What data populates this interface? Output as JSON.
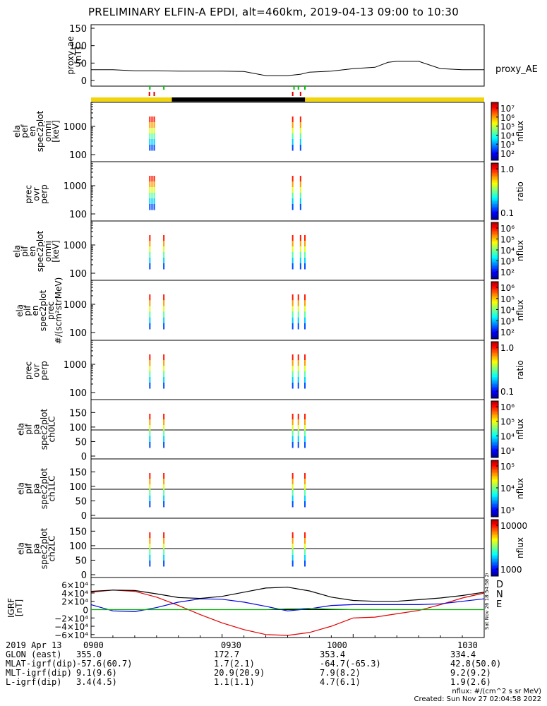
{
  "title": "PRELIMINARY ELFIN-A EPDI, alt=460km, 2019-04-13 09:00 to 10:30",
  "credits": {
    "units": "nflux: #/(cm^2 s sr MeV)",
    "created": "Created: Sun Nov 27 02:04:58 2022"
  },
  "stamp": "Sat Nov 26 18:54:58 2022",
  "footer": {
    "row_labels": [
      "2019 Apr 13",
      "GLON (east)",
      "MLAT-igrf(dip)",
      "MLT-igrf(dip)",
      "L-igrf(dip)"
    ],
    "times": [
      "0900",
      "0930",
      "1000",
      "1030"
    ],
    "rows": [
      [
        "355.0",
        "172.7",
        "353.4",
        "334.4"
      ],
      [
        "-57.6(60.7)",
        "1.7(2.1)",
        "-64.7(-65.3)",
        "42.8(50.0)"
      ],
      [
        "9.1(9.6)",
        "20.9(20.9)",
        "7.9(8.2)",
        "9.2(9.2)"
      ],
      [
        "3.4(4.5)",
        "1.1(1.1)",
        "4.7(6.1)",
        "1.9(2.6)"
      ]
    ]
  },
  "chart_data": [
    {
      "type": "line",
      "panel": "proxy_ae",
      "ylabel": "proxy_ae\n[nT]",
      "legend": "proxy_AE",
      "ylim": [
        0,
        150
      ],
      "yticks": [
        "150",
        "100",
        "50",
        "0"
      ],
      "x_minutes": [
        0,
        5,
        10,
        15,
        20,
        25,
        30,
        35,
        40,
        45,
        48,
        50,
        55,
        60,
        65,
        68,
        70,
        75,
        80,
        85,
        90
      ],
      "values": [
        31,
        31,
        28,
        28,
        27,
        27,
        27,
        26,
        14,
        14,
        18,
        24,
        27,
        34,
        38,
        52,
        55,
        55,
        34,
        31,
        31
      ]
    },
    {
      "type": "table",
      "panel": "orbit_bar",
      "segments": [
        {
          "from_min": 0,
          "to_min": 18.5,
          "color": "#f2d40a"
        },
        {
          "from_min": 18.5,
          "to_min": 49.0,
          "color": "#000000"
        },
        {
          "from_min": 49.0,
          "to_min": 90,
          "color": "#f2d40a"
        }
      ],
      "green_ticks_min": [
        13.3,
        16.5,
        46.3,
        47.3,
        48.8
      ],
      "red_ticks_min": [
        13.2,
        14.3,
        46.0,
        47.8
      ]
    },
    {
      "type": "heatmap",
      "panel": "ela_pef_en_spec2plot_omni",
      "ylabel": "ela\npef\nen\nspec2plot\nomni\n[keV]",
      "yscale": "log",
      "yticks": [
        "1000",
        "100"
      ],
      "colorbar": {
        "label": "nflux",
        "ticks": [
          "10⁷",
          "10⁶",
          "10⁵",
          "10⁴",
          "10³",
          "10²"
        ]
      },
      "streaks_min": [
        13.3,
        13.8,
        14.3,
        46.0,
        47.8
      ]
    },
    {
      "type": "heatmap",
      "panel": "prec_ovr_perp_1",
      "ylabel": "prec\novr\nperp",
      "yscale": "log",
      "yticks": [
        "1000",
        "100"
      ],
      "colorbar": {
        "label": "ratio",
        "ticks": [
          "1.0",
          "0.1"
        ]
      },
      "streaks_min": [
        13.3,
        13.8,
        14.3,
        46.0,
        47.8
      ]
    },
    {
      "type": "heatmap",
      "panel": "ela_pif_en_spec2plot_omni",
      "ylabel": "ela\npif\nen\nspec2plot\nomni\n[keV]",
      "yscale": "log",
      "yticks": [
        "1000",
        "100"
      ],
      "colorbar": {
        "label": "nflux",
        "ticks": [
          "10⁶",
          "10⁵",
          "10⁴",
          "10³",
          "10²"
        ]
      },
      "streaks_min": [
        13.3,
        16.5,
        46.0,
        47.8,
        48.8
      ]
    },
    {
      "type": "heatmap",
      "panel": "ela_pif_en_spec2plot_prec",
      "ylabel": "ela\npif\nen\nspec2plot\nprec\n#/(scm²strMeV)",
      "yscale": "log",
      "yticks": [
        "1000",
        "100"
      ],
      "colorbar": {
        "label": "nflux",
        "ticks": [
          "10⁶",
          "10⁵",
          "10⁴",
          "10³",
          "10²"
        ]
      },
      "streaks_min": [
        13.3,
        16.5,
        46.0,
        47.3,
        48.8
      ]
    },
    {
      "type": "heatmap",
      "panel": "prec_ovr_perp_2",
      "ylabel": "prec\novr\nperp",
      "yscale": "log",
      "yticks": [
        "1000",
        "100"
      ],
      "colorbar": {
        "label": "ratio",
        "ticks": [
          "1.0",
          "0.1"
        ]
      },
      "streaks_min": [
        13.3,
        16.5,
        46.0,
        47.3,
        48.8
      ]
    },
    {
      "type": "heatmap",
      "panel": "ela_pif_pa_spec2plot_ch0LC",
      "ylabel": "ela\npif\npa\nspec2plot\nch0LC",
      "ylim": [
        0,
        180
      ],
      "yticks": [
        "150",
        "100",
        "50",
        "0"
      ],
      "colorbar": {
        "label": "nflux",
        "ticks": [
          "10⁶",
          "10⁵",
          "10⁴",
          "10³"
        ]
      },
      "streaks_min": [
        13.3,
        16.5,
        46.0,
        47.3,
        48.8
      ]
    },
    {
      "type": "heatmap",
      "panel": "ela_pif_pa_spec2plot_ch1LC",
      "ylabel": "ela\npif\npa\nspec2plot\nch1LC",
      "ylim": [
        0,
        180
      ],
      "yticks": [
        "150",
        "100",
        "50",
        "0"
      ],
      "colorbar": {
        "label": "nflux",
        "ticks": [
          "10⁵",
          "10⁴",
          "10³"
        ]
      },
      "streaks_min": [
        13.3,
        16.5,
        46.0,
        48.8
      ]
    },
    {
      "type": "heatmap",
      "panel": "ela_pif_pa_spec2plot_ch2LC",
      "ylabel": "ela\npif\npa\nspec2plot\nch2LC",
      "ylim": [
        0,
        180
      ],
      "yticks": [
        "150",
        "100",
        "50",
        "0"
      ],
      "colorbar": {
        "label": "nflux",
        "ticks": [
          "10000",
          "1000"
        ]
      },
      "streaks_min": [
        13.3,
        16.5,
        46.0,
        48.8
      ]
    },
    {
      "type": "line",
      "panel": "IGRF",
      "ylabel": "IGRF\n[nT]",
      "yticks": [
        "6×10⁴",
        "4×10⁴",
        "2×10⁴",
        "0",
        "−2×10⁴",
        "−4×10⁴",
        "−6×10⁴"
      ],
      "ylim": [
        -65000,
        65000
      ],
      "x_minutes": [
        0,
        5,
        10,
        15,
        20,
        25,
        30,
        35,
        40,
        45,
        50,
        55,
        60,
        65,
        70,
        75,
        80,
        85,
        90
      ],
      "series": [
        {
          "name": "D",
          "color": "#e00000",
          "values": [
            42000,
            47000,
            44000,
            30000,
            10000,
            -12000,
            -32000,
            -48000,
            -60000,
            -62000,
            -55000,
            -40000,
            -20000,
            -18000,
            -10000,
            -2000,
            12000,
            28000,
            40000
          ]
        },
        {
          "name": "N",
          "color": "#0000e0",
          "values": [
            12000,
            -3000,
            -5000,
            5000,
            18000,
            26000,
            25000,
            18000,
            8000,
            -3000,
            2000,
            10000,
            12000,
            12000,
            12000,
            12000,
            14000,
            20000,
            26000
          ]
        },
        {
          "name": "E",
          "color": "#00b000",
          "values": [
            0,
            0,
            0,
            0,
            0,
            0,
            0,
            0,
            0,
            2000,
            3000,
            1000,
            0,
            0,
            0,
            0,
            0,
            0,
            0
          ]
        },
        {
          "name": "",
          "color": "#000000",
          "values": [
            44000,
            47000,
            46000,
            38000,
            29000,
            27000,
            32000,
            42000,
            52000,
            54000,
            45000,
            30000,
            22000,
            20000,
            20000,
            24000,
            28000,
            34000,
            42000
          ]
        }
      ]
    }
  ]
}
